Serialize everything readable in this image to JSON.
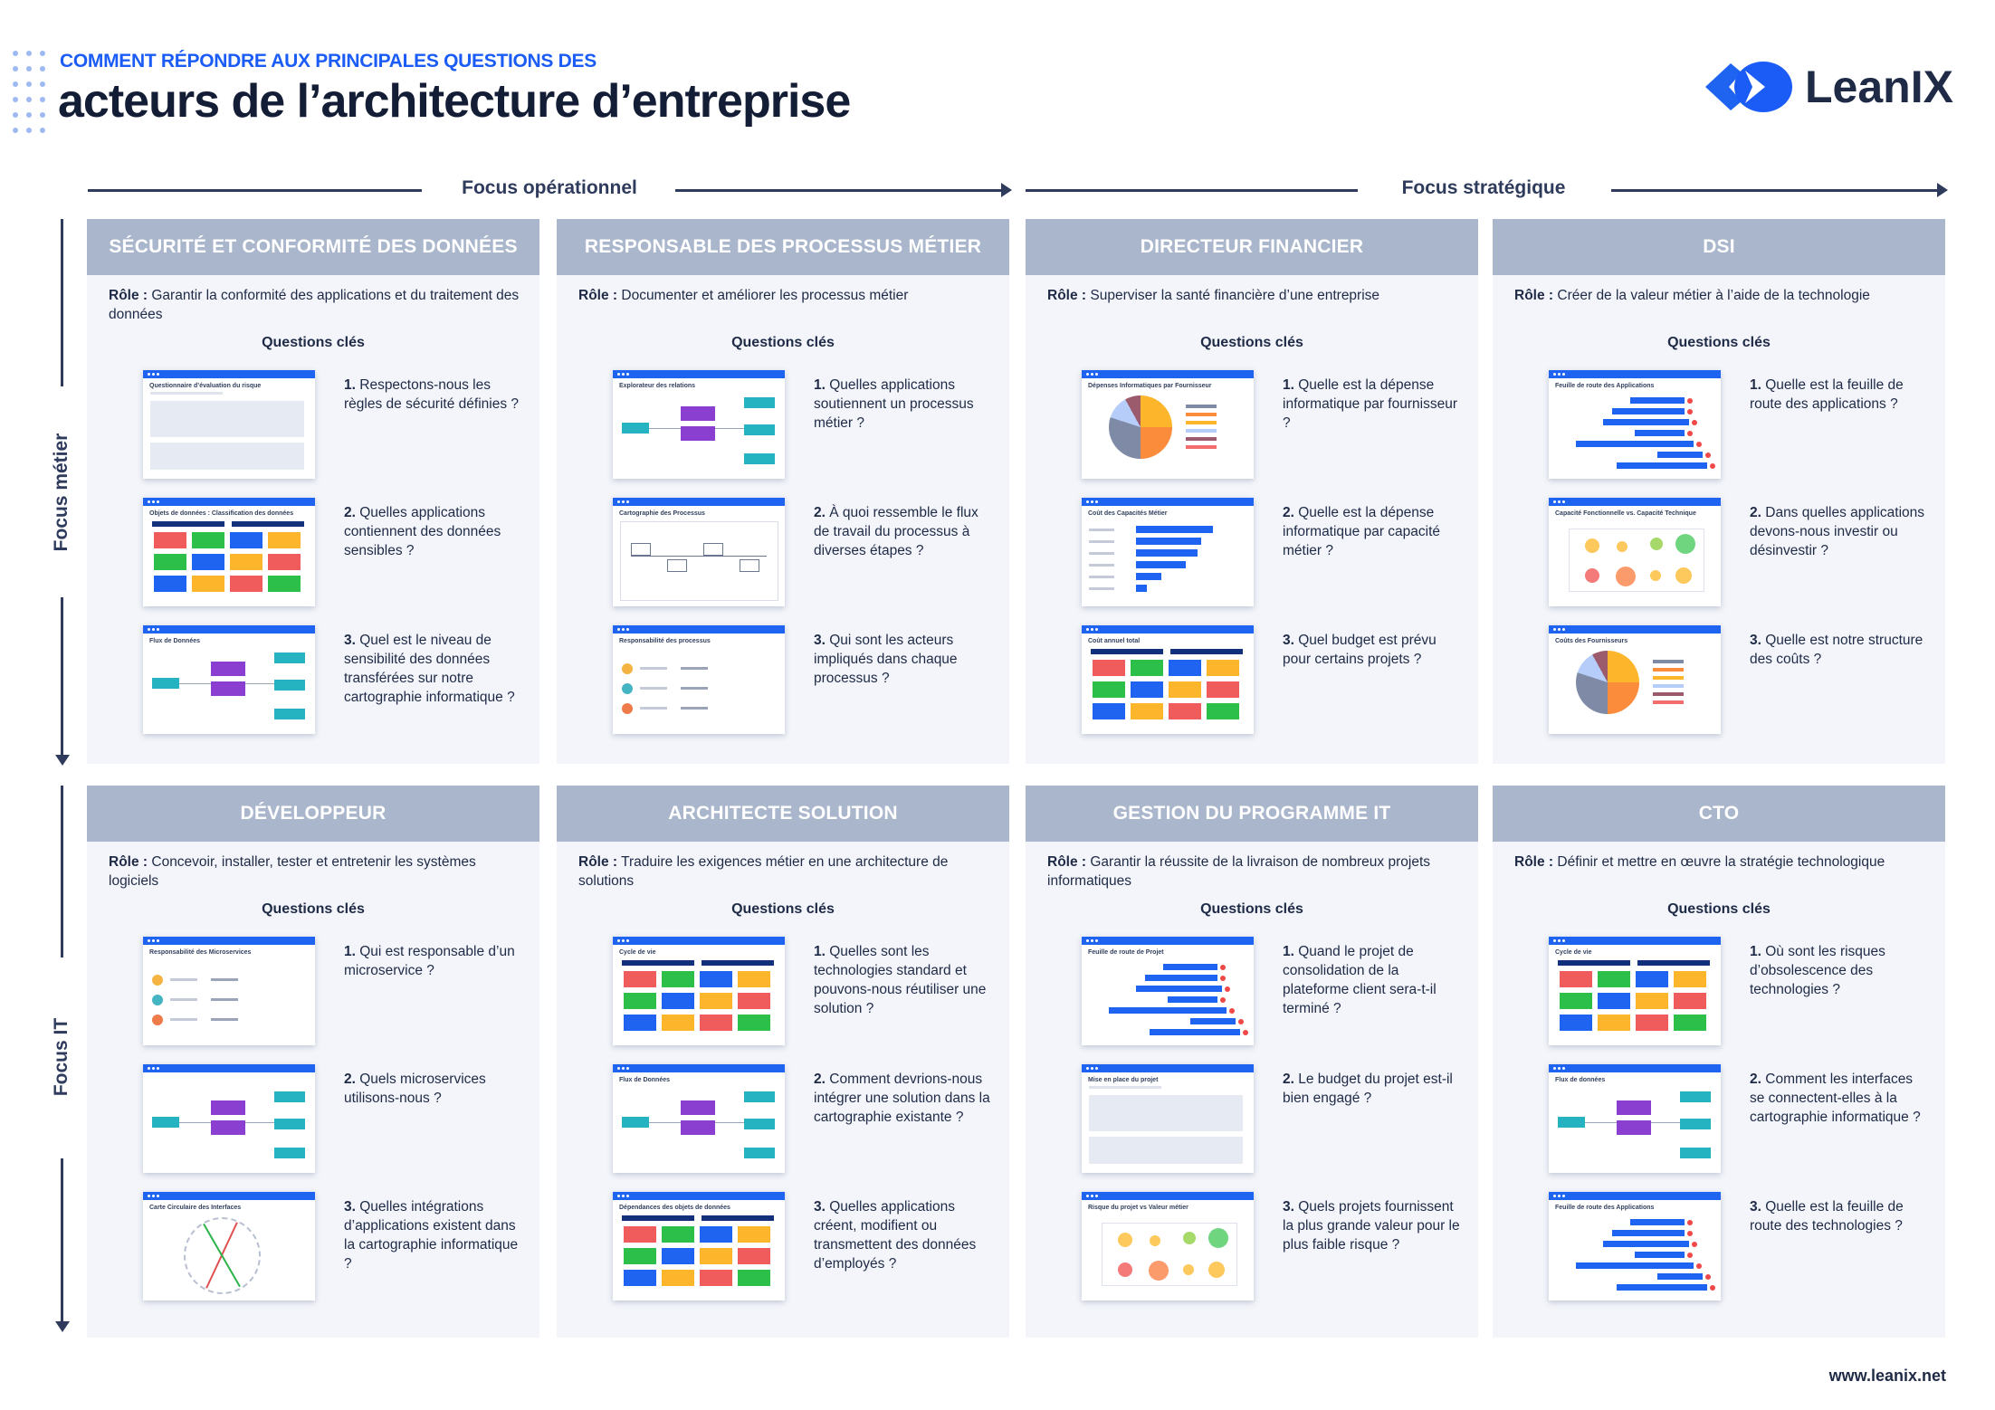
{
  "header": {
    "subtitle": "COMMENT RÉPONDRE AUX PRINCIPALES QUESTIONS DES",
    "title": "acteurs de l’architecture d’entreprise",
    "logo_text": "LeanIX"
  },
  "axes": {
    "horizontal": [
      "Focus opérationnel",
      "Focus stratégique"
    ],
    "vertical": [
      "Focus métier",
      "Focus IT"
    ]
  },
  "colors": {
    "accent": "#1a5cf5",
    "header_bg": "#a9b6cc",
    "card_bg": "#f3f5fa",
    "text": "#1e2a46"
  },
  "role_label": "Rôle :",
  "questions_label": "Questions clés",
  "cards": [
    {
      "title": "SÉCURITÉ ET CONFORMITÉ DES DONNÉES",
      "role": "Garantir la conformité des applications et du traitement des données",
      "items": [
        {
          "num": "1.",
          "text": "Respectons-nous les règles de sécurité définies ?",
          "shot_title": "Questionnaire d’évaluation du risque",
          "preview": "form"
        },
        {
          "num": "2.",
          "text": "Quelles applications contiennent des données sensibles ?",
          "shot_title": "Objets de données : Classification des données",
          "preview": "grid"
        },
        {
          "num": "3.",
          "text": "Quel est le niveau de sensibilité des données transférées sur notre cartographie informatique ?",
          "shot_title": "Flux de Données",
          "preview": "flow"
        }
      ]
    },
    {
      "title": "RESPONSABLE DES PROCESSUS MÉTIER",
      "role": "Documenter et améliorer les processus métier",
      "items": [
        {
          "num": "1.",
          "text": "Quelles applications soutiennent un processus métier ?",
          "shot_title": "Explorateur des relations",
          "preview": "flow"
        },
        {
          "num": "2.",
          "text": "À quoi ressemble le flux de travail du processus à diverses étapes ?",
          "shot_title": "Cartographie des Processus",
          "preview": "process"
        },
        {
          "num": "3.",
          "text": "Qui sont les acteurs impliqués dans chaque processus ?",
          "shot_title": "Responsabilité des processus",
          "preview": "people"
        }
      ]
    },
    {
      "title": "DIRECTEUR FINANCIER",
      "role": "Superviser la santé financière d’une entreprise",
      "items": [
        {
          "num": "1.",
          "text": "Quelle est la dépense informatique par fournisseur ?",
          "shot_title": "Dépenses Informatiques par Fournisseur",
          "preview": "pie"
        },
        {
          "num": "2.",
          "text": "Quelle est la dépense informatique par capacité métier ?",
          "shot_title": "Coût des Capacités Métier",
          "preview": "bars"
        },
        {
          "num": "3.",
          "text": "Quel budget est prévu pour certains projets ?",
          "shot_title": "Coût annuel total",
          "preview": "grid"
        }
      ]
    },
    {
      "title": "DSI",
      "role": "Créer de la valeur métier à l’aide de la technologie",
      "items": [
        {
          "num": "1.",
          "text": "Quelle est la feuille de route des applications ?",
          "shot_title": "Feuille de route des Applications",
          "preview": "gantt"
        },
        {
          "num": "2.",
          "text": "Dans quelles applications devons-nous investir ou désinvestir ?",
          "shot_title": "Capacité Fonctionnelle vs. Capacité Technique",
          "preview": "bubbles"
        },
        {
          "num": "3.",
          "text": "Quelle est notre structure des coûts ?",
          "shot_title": "Coûts des Fournisseurs",
          "preview": "pie"
        }
      ]
    },
    {
      "title": "DÉVELOPPEUR",
      "role": "Concevoir, installer, tester et entretenir les systèmes logiciels",
      "items": [
        {
          "num": "1.",
          "text": "Qui est responsable d’un microservice ?",
          "shot_title": "Responsabilité des Microservices",
          "preview": "people"
        },
        {
          "num": "2.",
          "text": "Quels microservices utilisons-nous ?",
          "shot_title": "",
          "preview": "flow"
        },
        {
          "num": "3.",
          "text": "Quelles intégrations d’applications existent dans la cartographie informatique ?",
          "shot_title": "Carte Circulaire des Interfaces",
          "preview": "circle"
        }
      ]
    },
    {
      "title": "ARCHITECTE SOLUTION",
      "role": "Traduire les exigences métier en une architecture de solutions",
      "items": [
        {
          "num": "1.",
          "text": "Quelles sont les technologies standard et pouvons-nous réutiliser une solution ?",
          "shot_title": "Cycle de vie",
          "preview": "grid"
        },
        {
          "num": "2.",
          "text": "Comment devrions-nous intégrer une solution dans la cartographie existante ?",
          "shot_title": "Flux de Données",
          "preview": "flow"
        },
        {
          "num": "3.",
          "text": "Quelles applications créent, modifient ou transmettent des données d’employés ?",
          "shot_title": "Dépendances des objets de données",
          "preview": "grid"
        }
      ]
    },
    {
      "title": "GESTION DU PROGRAMME IT",
      "role": "Garantir la réussite de la livraison de nombreux projets informatiques",
      "items": [
        {
          "num": "1.",
          "text": "Quand le projet de consolidation de la plateforme client sera-t-il terminé ?",
          "shot_title": "Feuille de route de Projet",
          "preview": "gantt"
        },
        {
          "num": "2.",
          "text": "Le budget du projet est-il bien engagé ?",
          "shot_title": "Mise en place du projet",
          "preview": "form"
        },
        {
          "num": "3.",
          "text": "Quels projets fournissent la plus grande valeur pour le plus faible risque ?",
          "shot_title": "Risque du projet vs Valeur métier",
          "preview": "bubbles"
        }
      ]
    },
    {
      "title": "CTO",
      "role": "Définir et mettre en œuvre la stratégie technologique",
      "items": [
        {
          "num": "1.",
          "text": "Où sont les risques d’obsolescence des technologies ?",
          "shot_title": "Cycle de vie",
          "preview": "grid"
        },
        {
          "num": "2.",
          "text": "Comment les interfaces se connectent-elles à la cartographie informatique ?",
          "shot_title": "Flux de données",
          "preview": "flow"
        },
        {
          "num": "3.",
          "text": "Quelle est la feuille de route des technologies ?",
          "shot_title": "Feuille de route des Applications",
          "preview": "gantt"
        }
      ]
    }
  ],
  "footer": {
    "url": "www.leanix.net"
  }
}
